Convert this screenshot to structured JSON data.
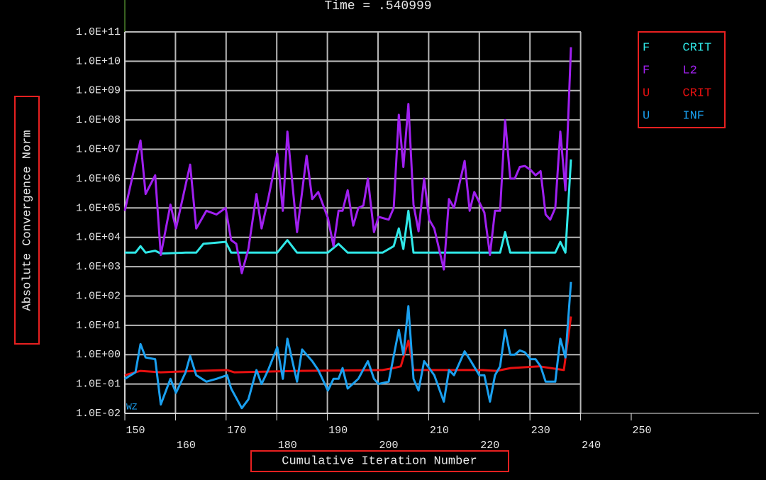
{
  "chart_data": {
    "type": "line",
    "title": "Time = .540999",
    "x_label": "Cumulative Iteration Number",
    "y_label": "Absolute Convergence Norm",
    "annotation": "WZ",
    "log_y": true,
    "grid": true,
    "legend_position": "upper right",
    "xlim": [
      150,
      250
    ],
    "xticks": [
      150,
      160,
      170,
      180,
      190,
      200,
      210,
      220,
      230,
      240,
      250
    ],
    "ylim": [
      0.01,
      100000000000.0
    ],
    "yticks": [
      {
        "value": 0.01,
        "label": "1.0E-02"
      },
      {
        "value": 0.1,
        "label": "1.0E-01"
      },
      {
        "value": 1,
        "label": "1.0E+00"
      },
      {
        "value": 10,
        "label": "1.0E+01"
      },
      {
        "value": 100,
        "label": "1.0E+02"
      },
      {
        "value": 1000,
        "label": "1.0E+03"
      },
      {
        "value": 10000,
        "label": "1.0E+04"
      },
      {
        "value": 100000,
        "label": "1.0E+05"
      },
      {
        "value": 1000000,
        "label": "1.0E+06"
      },
      {
        "value": 10000000,
        "label": "1.0E+07"
      },
      {
        "value": 100000000,
        "label": "1.0E+08"
      },
      {
        "value": 1000000000,
        "label": "1.0E+09"
      },
      {
        "value": 10000000000,
        "label": "1.0E+10"
      },
      {
        "value": 100000000000,
        "label": "1.0E+11"
      }
    ],
    "series": [
      {
        "name": "F CRIT",
        "color": "#30e8e8",
        "x": [
          150,
          152.1,
          153.1,
          154.1,
          156,
          157.1,
          162,
          164.1,
          165.5,
          169.9,
          171,
          180.1,
          182.1,
          184,
          190.1,
          192.2,
          194,
          200.9,
          203.1,
          204.1,
          205,
          206,
          207,
          216.1,
          221,
          222.1,
          224.1,
          225.1,
          226.1,
          235,
          236,
          237,
          238.1
        ],
        "values": [
          3000,
          3000,
          5000,
          3000,
          3500,
          2800,
          3000,
          3000,
          6000,
          7000,
          3000,
          3000,
          8000,
          3000,
          3000,
          6000,
          3000,
          3000,
          5000,
          20000,
          4000,
          80000,
          3000,
          3000,
          3000,
          3000,
          3000,
          15000,
          3000,
          3000,
          7000,
          3000,
          4500000
        ]
      },
      {
        "name": "F L2",
        "color": "#a020f0",
        "x": [
          150,
          153.1,
          154.1,
          156,
          157.1,
          159,
          160.1,
          162.9,
          164.1,
          166.1,
          168.1,
          169.9,
          171,
          172,
          173.1,
          174.4,
          176,
          177,
          178.3,
          180.1,
          181.2,
          182.1,
          184,
          185.9,
          187,
          188.2,
          190.1,
          191.2,
          192.2,
          193,
          194,
          195.1,
          196.1,
          197.1,
          198,
          199.2,
          200.1,
          202.1,
          203.1,
          204.1,
          205,
          206,
          207,
          208,
          209.1,
          210.1,
          211.1,
          213,
          214,
          215,
          217.1,
          218.1,
          219,
          221,
          222.1,
          223.1,
          224.1,
          225.1,
          226.1,
          227,
          228,
          229,
          230.1,
          231.1,
          232.1,
          233.1,
          234,
          235,
          236,
          237,
          238.1
        ],
        "values": [
          80000,
          20000000,
          300000,
          1300000,
          2500,
          130000,
          20000,
          3000000,
          20000,
          80000,
          60000,
          100000,
          8000,
          6000,
          600,
          4000,
          300000,
          20000,
          200000,
          7000000,
          80000,
          40000000,
          15000,
          6000000,
          200000,
          350000,
          46000,
          5000,
          80000,
          80000,
          400000,
          25000,
          100000,
          120000,
          1000000,
          15000,
          50000,
          40000,
          100000,
          150000000,
          2500000,
          350000000,
          130000,
          16000,
          1000000,
          40000,
          20000,
          800,
          200000,
          100000,
          4000000,
          80000,
          350000,
          70000,
          2500,
          80000,
          80000,
          100000000,
          1000000,
          1000000,
          2500000,
          2700000,
          2000000,
          1300000,
          1800000,
          60000,
          40000,
          100000,
          40000000,
          400000,
          30000000000
        ]
      },
      {
        "name": "U CRIT",
        "color": "#e81010",
        "x": [
          150,
          153.1,
          157.1,
          162,
          170.2,
          171.6,
          184.2,
          200.9,
          203.1,
          204.5,
          206,
          207,
          220.6,
          223.4,
          226.2,
          231.8,
          236.7,
          238.1
        ],
        "values": [
          0.2,
          0.28,
          0.25,
          0.27,
          0.3,
          0.25,
          0.28,
          0.3,
          0.35,
          0.4,
          3,
          0.3,
          0.3,
          0.28,
          0.35,
          0.4,
          0.3,
          20
        ]
      },
      {
        "name": "U INF",
        "color": "#1aa0f0",
        "x": [
          150,
          152.1,
          153.1,
          154.1,
          156,
          157.1,
          159,
          160.1,
          162,
          162.9,
          164.1,
          166.1,
          168.1,
          170.2,
          171,
          173.1,
          174.4,
          176,
          177,
          178.3,
          180.1,
          181.2,
          182.1,
          184,
          185,
          187,
          188.2,
          190.1,
          191.2,
          192.2,
          193,
          194,
          196.1,
          198,
          199.2,
          200.1,
          202.1,
          204.1,
          205,
          206,
          207,
          208,
          209.1,
          211.1,
          213,
          214,
          215,
          217.1,
          218.1,
          220,
          221,
          222.1,
          223.1,
          224.1,
          225.1,
          226.1,
          227,
          228,
          229,
          230.1,
          231.1,
          232.1,
          233.1,
          234,
          235,
          236,
          237,
          238.1
        ],
        "values": [
          0.15,
          0.25,
          2.3,
          0.8,
          0.7,
          0.02,
          0.15,
          0.05,
          0.25,
          0.9,
          0.2,
          0.12,
          0.15,
          0.2,
          0.07,
          0.015,
          0.03,
          0.3,
          0.1,
          0.3,
          1.8,
          0.15,
          3.5,
          0.12,
          1.5,
          0.6,
          0.3,
          0.06,
          0.15,
          0.15,
          0.35,
          0.07,
          0.15,
          0.6,
          0.15,
          0.1,
          0.12,
          7,
          1,
          45,
          0.15,
          0.06,
          0.6,
          0.2,
          0.025,
          0.3,
          0.2,
          1.3,
          0.7,
          0.2,
          0.2,
          0.025,
          0.2,
          0.4,
          7,
          1,
          1,
          1.4,
          1.2,
          0.7,
          0.7,
          0.4,
          0.12,
          0.12,
          0.12,
          3.5,
          0.8,
          300
        ]
      }
    ]
  }
}
